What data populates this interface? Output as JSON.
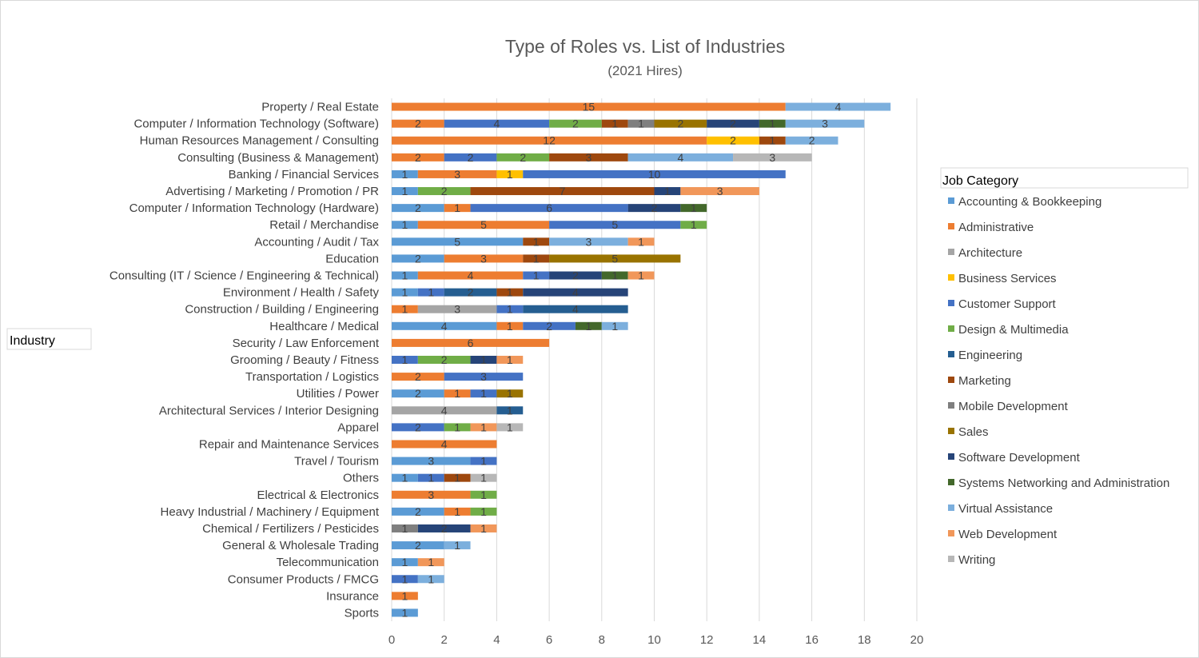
{
  "chart_data": {
    "type": "bar",
    "orientation": "horizontal",
    "stacked": true,
    "title": "Type of Roles vs. List of Industries",
    "subtitle": "(2021 Hires)",
    "ylabel": "Industry",
    "xlim": [
      0,
      20
    ],
    "xticks": [
      0,
      2,
      4,
      6,
      8,
      10,
      12,
      14,
      16,
      18,
      20
    ],
    "grid": true,
    "legend_title": "Job Category",
    "legend_position": "right",
    "categories": [
      "Property / Real Estate",
      "Computer / Information Technology (Software)",
      "Human Resources Management / Consulting",
      "Consulting (Business & Management)",
      "Banking / Financial Services",
      "Advertising / Marketing / Promotion / PR",
      "Computer / Information Technology (Hardware)",
      "Retail / Merchandise",
      "Accounting / Audit / Tax",
      "Education",
      "Consulting (IT / Science / Engineering & Technical)",
      "Environment / Health / Safety",
      "Construction / Building / Engineering",
      "Healthcare / Medical",
      "Security / Law Enforcement",
      "Grooming / Beauty / Fitness",
      "Transportation / Logistics",
      "Utilities / Power",
      "Architectural Services / Interior Designing",
      "Apparel",
      "Repair and Maintenance Services",
      "Travel / Tourism",
      "Others",
      "Electrical & Electronics",
      "Heavy Industrial / Machinery / Equipment",
      "Chemical / Fertilizers / Pesticides",
      "General & Wholesale Trading",
      "Telecommunication",
      "Consumer Products / FMCG",
      "Insurance",
      "Sports"
    ],
    "series": [
      {
        "name": "Accounting & Bookkeeping",
        "color": "#5B9BD5",
        "values": [
          0,
          0,
          0,
          0,
          1,
          1,
          2,
          1,
          5,
          2,
          1,
          1,
          0,
          4,
          0,
          0,
          0,
          2,
          0,
          0,
          0,
          3,
          1,
          0,
          2,
          0,
          2,
          1,
          0,
          0,
          1
        ]
      },
      {
        "name": "Administrative",
        "color": "#ED7D31",
        "values": [
          15,
          2,
          12,
          2,
          3,
          0,
          1,
          5,
          0,
          3,
          4,
          0,
          1,
          1,
          6,
          0,
          2,
          1,
          0,
          0,
          4,
          0,
          0,
          3,
          1,
          0,
          0,
          0,
          0,
          1,
          0
        ]
      },
      {
        "name": "Architecture",
        "color": "#A5A5A5",
        "values": [
          0,
          0,
          0,
          0,
          0,
          0,
          0,
          0,
          0,
          0,
          0,
          0,
          3,
          0,
          0,
          0,
          0,
          0,
          4,
          0,
          0,
          0,
          0,
          0,
          0,
          0,
          0,
          0,
          0,
          0,
          0
        ]
      },
      {
        "name": "Business Services",
        "color": "#FFC000",
        "values": [
          0,
          0,
          2,
          0,
          1,
          0,
          0,
          0,
          0,
          0,
          0,
          0,
          0,
          0,
          0,
          0,
          0,
          0,
          0,
          0,
          0,
          0,
          0,
          0,
          0,
          0,
          0,
          0,
          0,
          0,
          0
        ]
      },
      {
        "name": "Customer Support",
        "color": "#4472C4",
        "values": [
          0,
          4,
          0,
          2,
          10,
          0,
          6,
          5,
          0,
          0,
          1,
          1,
          1,
          2,
          0,
          1,
          3,
          1,
          0,
          2,
          0,
          1,
          1,
          0,
          0,
          0,
          0,
          0,
          1,
          0,
          0
        ]
      },
      {
        "name": "Design & Multimedia",
        "color": "#70AD47",
        "values": [
          0,
          2,
          0,
          2,
          0,
          2,
          0,
          1,
          0,
          0,
          0,
          0,
          0,
          0,
          0,
          2,
          0,
          0,
          0,
          1,
          0,
          0,
          0,
          1,
          1,
          0,
          0,
          0,
          0,
          0,
          0
        ]
      },
      {
        "name": "Engineering",
        "color": "#255E91",
        "values": [
          0,
          0,
          0,
          0,
          0,
          0,
          0,
          0,
          0,
          0,
          0,
          2,
          4,
          0,
          0,
          0,
          0,
          0,
          1,
          0,
          0,
          0,
          0,
          0,
          0,
          0,
          0,
          0,
          0,
          0,
          0
        ]
      },
      {
        "name": "Marketing",
        "color": "#9E480E",
        "values": [
          0,
          1,
          1,
          3,
          0,
          7,
          0,
          0,
          1,
          1,
          0,
          1,
          0,
          0,
          0,
          0,
          0,
          0,
          0,
          0,
          0,
          0,
          1,
          0,
          0,
          0,
          0,
          0,
          0,
          0,
          0
        ]
      },
      {
        "name": "Mobile Development",
        "color": "#7F7F7F",
        "values": [
          0,
          1,
          0,
          0,
          0,
          0,
          0,
          0,
          0,
          0,
          0,
          0,
          0,
          0,
          0,
          0,
          0,
          0,
          0,
          0,
          0,
          0,
          0,
          0,
          0,
          1,
          0,
          0,
          0,
          0,
          0
        ]
      },
      {
        "name": "Sales",
        "color": "#997300",
        "values": [
          0,
          2,
          0,
          0,
          0,
          0,
          0,
          0,
          0,
          5,
          0,
          0,
          0,
          0,
          0,
          0,
          0,
          1,
          0,
          0,
          0,
          0,
          0,
          0,
          0,
          0,
          0,
          0,
          0,
          0,
          0
        ]
      },
      {
        "name": "Software Development",
        "color": "#264478",
        "values": [
          0,
          2,
          0,
          0,
          0,
          1,
          2,
          0,
          0,
          0,
          2,
          4,
          0,
          0,
          0,
          1,
          0,
          0,
          0,
          0,
          0,
          0,
          0,
          0,
          0,
          2,
          0,
          0,
          0,
          0,
          0
        ]
      },
      {
        "name": "Systems Networking and Administration",
        "color": "#43682B",
        "values": [
          0,
          1,
          0,
          0,
          0,
          0,
          1,
          0,
          0,
          0,
          1,
          0,
          0,
          1,
          0,
          0,
          0,
          0,
          0,
          0,
          0,
          0,
          0,
          0,
          0,
          0,
          0,
          0,
          0,
          0,
          0
        ]
      },
      {
        "name": "Virtual Assistance",
        "color": "#7CAFDD",
        "values": [
          4,
          3,
          2,
          4,
          0,
          0,
          0,
          0,
          3,
          0,
          0,
          0,
          0,
          1,
          0,
          0,
          0,
          0,
          0,
          0,
          0,
          0,
          0,
          0,
          0,
          0,
          1,
          0,
          1,
          0,
          0
        ]
      },
      {
        "name": "Web Development",
        "color": "#F1975A",
        "values": [
          0,
          0,
          0,
          0,
          0,
          3,
          0,
          0,
          1,
          0,
          1,
          0,
          0,
          0,
          0,
          1,
          0,
          0,
          0,
          1,
          0,
          0,
          0,
          0,
          0,
          1,
          0,
          1,
          0,
          0,
          0
        ]
      },
      {
        "name": "Writing",
        "color": "#B7B7B7",
        "values": [
          0,
          0,
          0,
          3,
          0,
          0,
          0,
          0,
          0,
          0,
          0,
          0,
          0,
          0,
          0,
          0,
          0,
          0,
          0,
          1,
          0,
          0,
          1,
          0,
          0,
          0,
          0,
          0,
          0,
          0,
          0
        ]
      }
    ]
  }
}
